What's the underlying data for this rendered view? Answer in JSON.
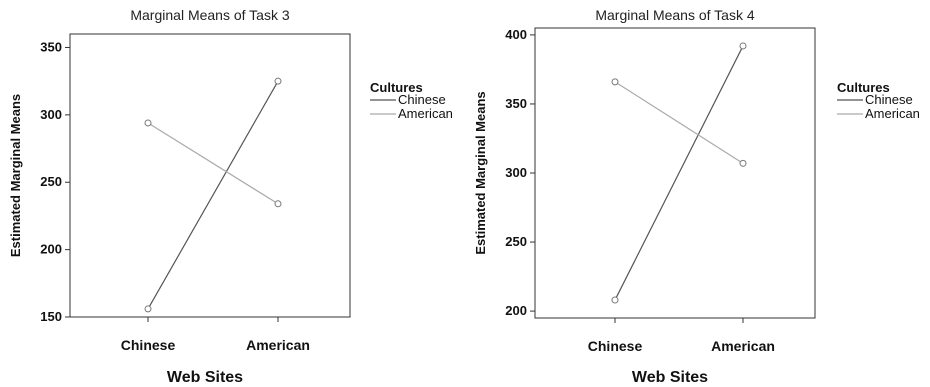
{
  "chart_data": [
    {
      "type": "line",
      "title": "Marginal Means of Task 3",
      "xlabel": "Web Sites",
      "ylabel": "Estimated Marginal Means",
      "categories": [
        "Chinese",
        "American"
      ],
      "ylim": [
        150,
        360
      ],
      "yticks": [
        150,
        200,
        250,
        300,
        350
      ],
      "ytick_labels": [
        "150",
        "200",
        "250",
        "300",
        "350"
      ],
      "grid": false,
      "legend": {
        "title": "Cultures",
        "placement": "right"
      },
      "series": [
        {
          "name": "Chinese",
          "values": [
            156,
            325
          ],
          "color": "#555555"
        },
        {
          "name": "American",
          "values": [
            294,
            234
          ],
          "color": "#aaaaaa"
        }
      ]
    },
    {
      "type": "line",
      "title": "Marginal Means of Task 4",
      "xlabel": "Web Sites",
      "ylabel": "Estimated Marginal Means",
      "categories": [
        "Chinese",
        "American"
      ],
      "ylim": [
        195,
        405
      ],
      "yticks": [
        200,
        250,
        300,
        350,
        400
      ],
      "ytick_labels": [
        "200",
        "250",
        "300",
        "350",
        "400"
      ],
      "grid": false,
      "legend": {
        "title": "Cultures",
        "placement": "right"
      },
      "series": [
        {
          "name": "Chinese",
          "values": [
            208,
            392
          ],
          "color": "#555555"
        },
        {
          "name": "American",
          "values": [
            366,
            307
          ],
          "color": "#aaaaaa"
        }
      ]
    }
  ]
}
